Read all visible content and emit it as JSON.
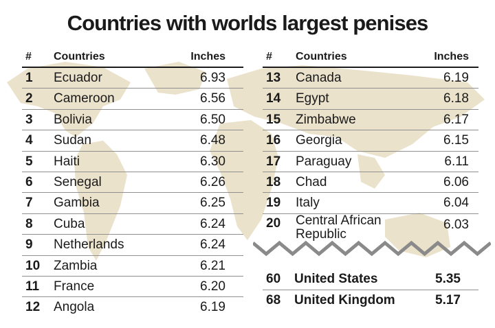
{
  "title": "Countries with worlds largest penises",
  "headers": {
    "rank": "#",
    "country": "Countries",
    "value": "Inches"
  },
  "colors": {
    "map": "#ebe2cc",
    "text": "#1a1a1a",
    "divider": "#8f8f8f"
  },
  "chart_data": {
    "type": "table",
    "title": "Countries with worlds largest penises",
    "columns": [
      "#",
      "Countries",
      "Inches"
    ],
    "rows": [
      {
        "rank": "1",
        "country": "Ecuador",
        "inches": "6.93"
      },
      {
        "rank": "2",
        "country": "Cameroon",
        "inches": "6.56"
      },
      {
        "rank": "3",
        "country": "Bolivia",
        "inches": "6.50"
      },
      {
        "rank": "4",
        "country": "Sudan",
        "inches": "6.48"
      },
      {
        "rank": "5",
        "country": "Haiti",
        "inches": "6.30"
      },
      {
        "rank": "6",
        "country": "Senegal",
        "inches": "6.26"
      },
      {
        "rank": "7",
        "country": "Gambia",
        "inches": "6.25"
      },
      {
        "rank": "8",
        "country": "Cuba",
        "inches": "6.24"
      },
      {
        "rank": "9",
        "country": "Netherlands",
        "inches": "6.24"
      },
      {
        "rank": "10",
        "country": "Zambia",
        "inches": "6.21"
      },
      {
        "rank": "11",
        "country": "France",
        "inches": "6.20"
      },
      {
        "rank": "12",
        "country": "Angola",
        "inches": "6.19"
      },
      {
        "rank": "13",
        "country": "Canada",
        "inches": "6.19"
      },
      {
        "rank": "14",
        "country": "Egypt",
        "inches": "6.18"
      },
      {
        "rank": "15",
        "country": "Zimbabwe",
        "inches": "6.17"
      },
      {
        "rank": "16",
        "country": "Georgia",
        "inches": "6.15"
      },
      {
        "rank": "17",
        "country": "Paraguay",
        "inches": "6.11"
      },
      {
        "rank": "18",
        "country": "Chad",
        "inches": "6.06"
      },
      {
        "rank": "19",
        "country": "Italy",
        "inches": "6.04"
      },
      {
        "rank": "20",
        "country": "Central African Republic",
        "inches": "6.03"
      },
      {
        "rank": "60",
        "country": "United States",
        "inches": "5.35"
      },
      {
        "rank": "68",
        "country": "United Kingdom",
        "inches": "5.17"
      }
    ]
  }
}
